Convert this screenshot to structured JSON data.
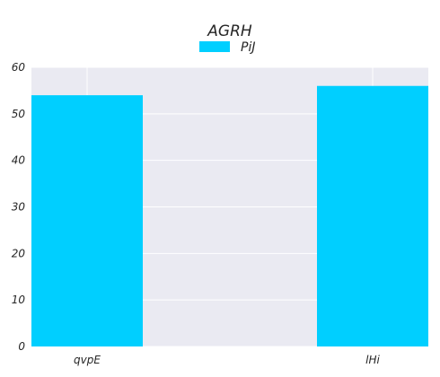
{
  "chart_data": {
    "type": "bar",
    "title": "AGRH",
    "categories": [
      "qvpE",
      "lHi"
    ],
    "series": [
      {
        "name": "PiJ",
        "values": [
          54,
          56
        ]
      }
    ],
    "ylim": [
      0,
      60
    ],
    "yticks": [
      0,
      10,
      20,
      30,
      40,
      50,
      60
    ],
    "grid": true,
    "legend": "top-center",
    "colors": {
      "bar": "#00CFFF",
      "plot_bg": "#EAEAF2",
      "grid": "#FFFFFF",
      "text": "#262626"
    }
  }
}
